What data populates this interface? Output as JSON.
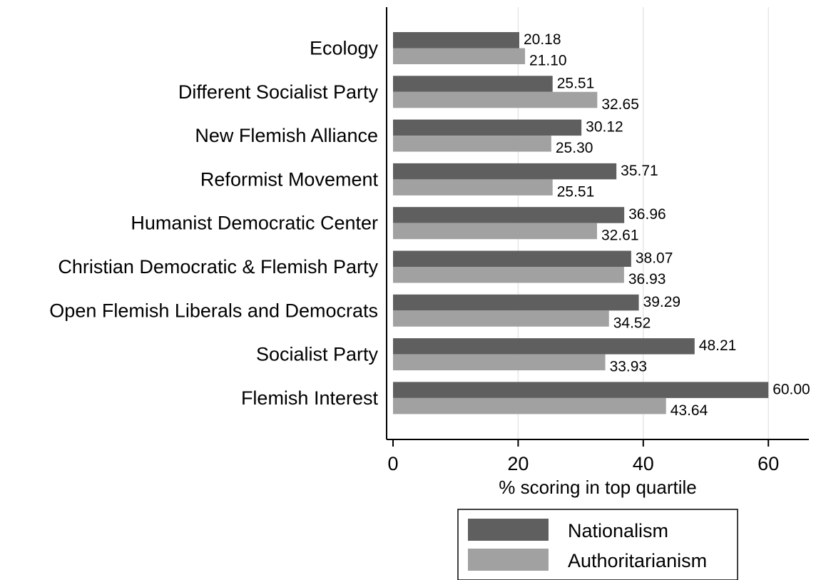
{
  "chart_data": {
    "type": "bar",
    "orientation": "horizontal",
    "categories": [
      "Ecology",
      "Different Socialist Party",
      "New Flemish Alliance",
      "Reformist Movement",
      "Humanist Democratic Center",
      "Christian Democratic & Flemish Party",
      "Open Flemish Liberals and Democrats",
      "Socialist Party",
      "Flemish Interest"
    ],
    "series": [
      {
        "name": "Nationalism",
        "color": "#5f5f5f",
        "values": [
          20.18,
          25.51,
          30.12,
          35.71,
          36.96,
          38.07,
          39.29,
          48.21,
          60.0
        ],
        "labels": [
          "20.18",
          "25.51",
          "30.12",
          "35.71",
          "36.96",
          "38.07",
          "39.29",
          "48.21",
          "60.00"
        ]
      },
      {
        "name": "Authoritarianism",
        "color": "#a1a1a1",
        "values": [
          21.1,
          32.65,
          25.3,
          25.51,
          32.61,
          36.93,
          34.52,
          33.93,
          43.64
        ],
        "labels": [
          "21.10",
          "32.65",
          "25.30",
          "25.51",
          "32.61",
          "36.93",
          "34.52",
          "33.93",
          "43.64"
        ]
      }
    ],
    "xlabel": "% scoring in top quartile",
    "xlim": [
      0,
      66
    ],
    "xticks": [
      "0",
      "20",
      "40",
      "60"
    ],
    "xtick_values": [
      0,
      20,
      40,
      60
    ],
    "grid": true,
    "legend_position": "bottom"
  }
}
